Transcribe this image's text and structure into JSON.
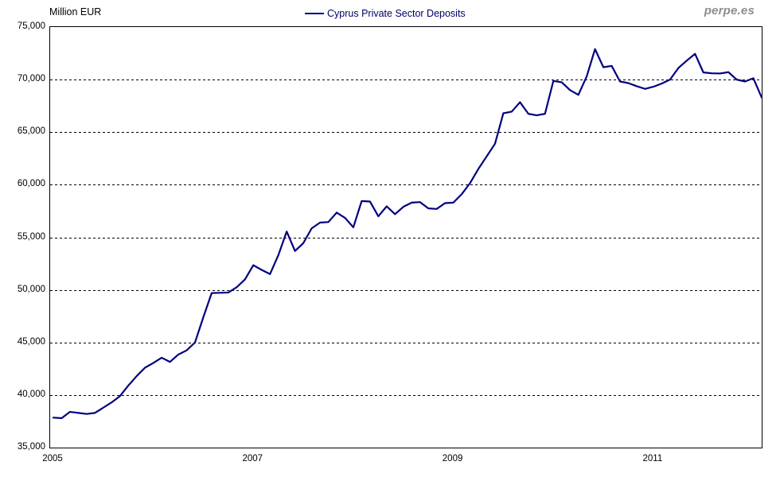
{
  "header": {
    "y_axis_title": "Million EUR",
    "watermark": "perpe.es"
  },
  "legend": {
    "label": "Cyprus Private Sector Deposits"
  },
  "chart_data": {
    "type": "line",
    "title": "Cyprus Private Sector Deposits",
    "ylabel": "Million EUR",
    "xlabel": "",
    "x_monthly_start": "2005-01",
    "x_monthly_end": "2012-02",
    "ylim": [
      35000,
      75000
    ],
    "grid": "horizontal dashed lines at 40000-70000, solid frame at 35000/75000",
    "legend_position": "top-center",
    "line_color": "#000080",
    "yticks": [
      {
        "value": 75000,
        "label": "75,000"
      },
      {
        "value": 70000,
        "label": "70,000"
      },
      {
        "value": 65000,
        "label": "65,000"
      },
      {
        "value": 60000,
        "label": "60,000"
      },
      {
        "value": 55000,
        "label": "55,000"
      },
      {
        "value": 50000,
        "label": "50,000"
      },
      {
        "value": 45000,
        "label": "45,000"
      },
      {
        "value": 40000,
        "label": "40,000"
      },
      {
        "value": 35000,
        "label": "35,000"
      }
    ],
    "xticks": [
      {
        "label": "2005",
        "month_index": 0
      },
      {
        "label": "2007",
        "month_index": 24
      },
      {
        "label": "2009",
        "month_index": 48
      },
      {
        "label": "2011",
        "month_index": 72
      }
    ],
    "series": [
      {
        "name": "Cyprus Private Sector Deposits",
        "color": "#000080",
        "values": [
          37850,
          37800,
          38400,
          38300,
          38200,
          38300,
          38800,
          39300,
          39900,
          40900,
          41800,
          42600,
          43050,
          43550,
          43150,
          43850,
          44250,
          45000,
          47400,
          49700,
          49720,
          49750,
          50250,
          51000,
          52350,
          51900,
          51500,
          53300,
          55550,
          53700,
          54450,
          55850,
          56400,
          56450,
          57350,
          56850,
          55950,
          58450,
          58400,
          57000,
          57950,
          57200,
          57900,
          58300,
          58350,
          57750,
          57700,
          58250,
          58300,
          59100,
          60150,
          61500,
          62700,
          63900,
          66800,
          66950,
          67850,
          66750,
          66600,
          66750,
          69870,
          69750,
          69000,
          68550,
          70300,
          72900,
          71180,
          71300,
          69820,
          69670,
          69370,
          69120,
          69320,
          69620,
          70000,
          71100,
          71800,
          72450,
          70680,
          70600,
          70580,
          70710,
          70000,
          69820,
          70130,
          68290
        ]
      }
    ]
  }
}
